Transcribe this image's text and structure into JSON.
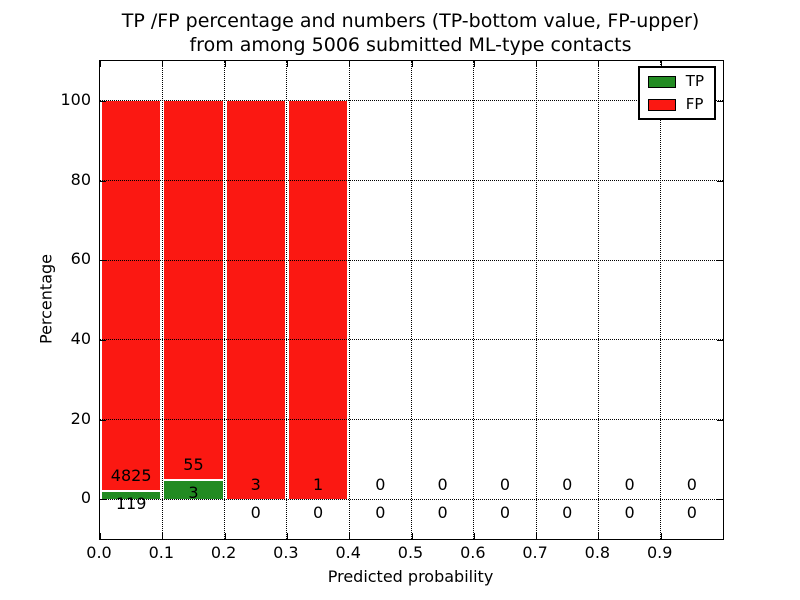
{
  "title": {
    "line1": "TP /FP percentage and numbers (TP-bottom value, FP-upper)",
    "line2": "from among 5006 submitted ML-type contacts"
  },
  "chart_data": {
    "type": "bar",
    "stacked": true,
    "normalization": "percent (TP+FP = 100% per bin)",
    "title": "TP /FP percentage and numbers (TP-bottom value, FP-upper) from among 5006 submitted ML-type contacts",
    "xlabel": "Predicted probability",
    "ylabel": "Percentage",
    "xlim": [
      0.0,
      1.0
    ],
    "ylim": [
      -10,
      110
    ],
    "bin_width": 0.1,
    "bin_starts": [
      0.0,
      0.1,
      0.2,
      0.3,
      0.4,
      0.5,
      0.6,
      0.7,
      0.8,
      0.9
    ],
    "x_ticks": [
      0.0,
      0.1,
      0.2,
      0.3,
      0.4,
      0.5,
      0.6,
      0.7,
      0.8,
      0.9
    ],
    "x_tick_labels": [
      "0.0",
      "0.1",
      "0.2",
      "0.3",
      "0.4",
      "0.5",
      "0.6",
      "0.7",
      "0.8",
      "0.9"
    ],
    "y_ticks": [
      0,
      20,
      40,
      60,
      80,
      100
    ],
    "y_tick_labels": [
      "0",
      "20",
      "40",
      "60",
      "80",
      "100"
    ],
    "grid": true,
    "series": [
      {
        "name": "TP",
        "color": "#228b22",
        "counts": [
          119,
          3,
          0,
          0,
          0,
          0,
          0,
          0,
          0,
          0
        ]
      },
      {
        "name": "FP",
        "color": "#fb1812",
        "counts": [
          4825,
          55,
          3,
          1,
          0,
          0,
          0,
          0,
          0,
          0
        ]
      }
    ],
    "tp_percent_per_bin": [
      2.41,
      5.17,
      0,
      0,
      0,
      0,
      0,
      0,
      0,
      0
    ],
    "fp_percent_per_bin": [
      97.59,
      94.83,
      100,
      100,
      0,
      0,
      0,
      0,
      0,
      0
    ],
    "legend": {
      "position": "upper right",
      "entries": [
        {
          "label": "TP",
          "color": "#228b22"
        },
        {
          "label": "FP",
          "color": "#fb1812"
        }
      ]
    }
  }
}
